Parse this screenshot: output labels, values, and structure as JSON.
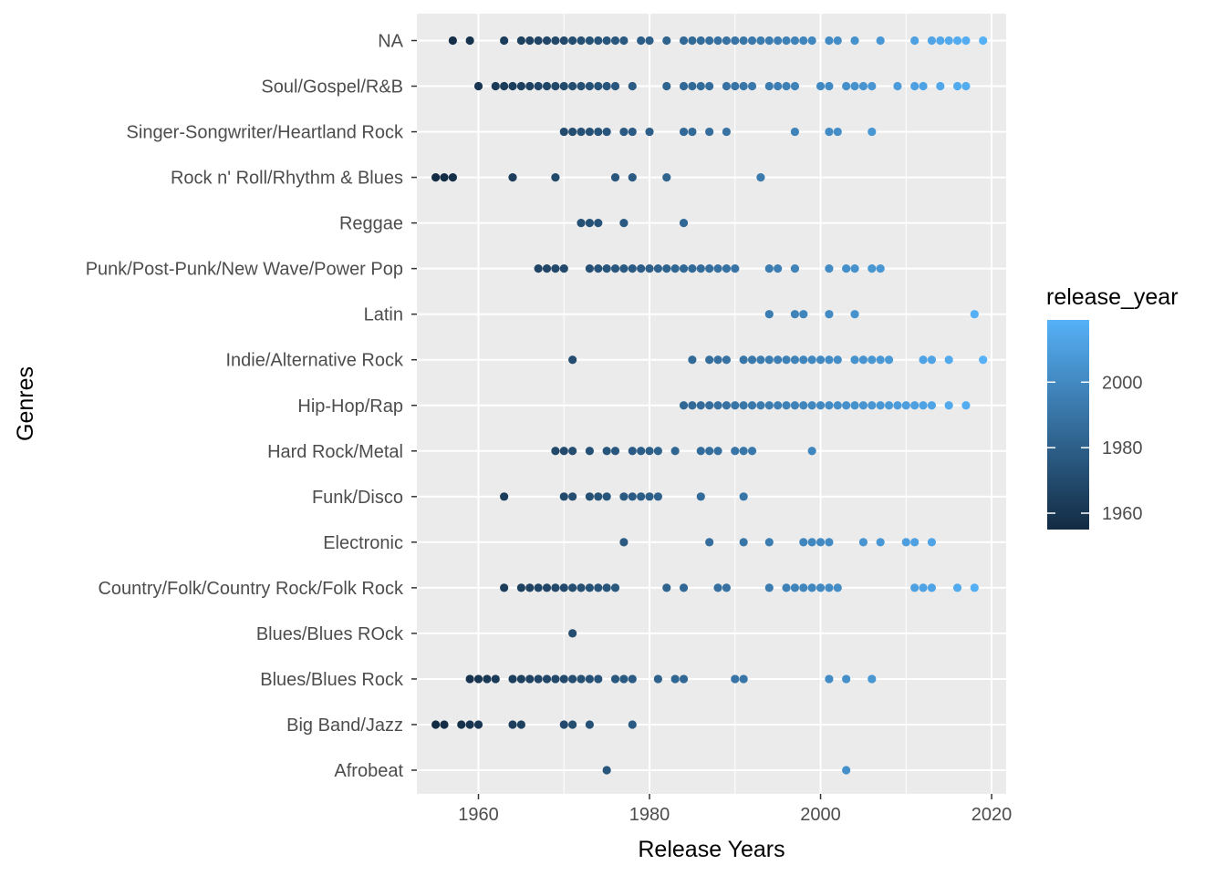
{
  "chart_data": {
    "type": "scatter",
    "title": "",
    "xlabel": "Release Years",
    "ylabel": "Genres",
    "xlim": [
      1952.8,
      2021.7
    ],
    "x_ticks": [
      1960,
      1980,
      2000,
      2020
    ],
    "grid": true,
    "legend_position": "right",
    "colorbar": {
      "title": "release_year",
      "range": [
        1955,
        2019
      ],
      "ticks": [
        1960,
        1980,
        2000
      ],
      "low_color": "#132b43",
      "high_color": "#56b1f7"
    },
    "categories": [
      "Afrobeat",
      "Big Band/Jazz",
      "Blues/Blues Rock",
      "Blues/Blues ROck",
      "Country/Folk/Country Rock/Folk Rock",
      "Electronic",
      "Funk/Disco",
      "Hard Rock/Metal",
      "Hip-Hop/Rap",
      "Indie/Alternative Rock",
      "Latin",
      "Punk/Post-Punk/New Wave/Power Pop",
      "Reggae",
      "Rock n' Roll/Rhythm & Blues",
      "Singer-Songwriter/Heartland Rock",
      "Soul/Gospel/R&B",
      "NA"
    ],
    "points": {
      "NA": [
        1957,
        1959,
        1963,
        1965,
        1966,
        1967,
        1968,
        1969,
        1970,
        1971,
        1972,
        1973,
        1974,
        1975,
        1976,
        1977,
        1979,
        1980,
        1982,
        1984,
        1985,
        1986,
        1987,
        1988,
        1989,
        1990,
        1991,
        1992,
        1993,
        1994,
        1995,
        1996,
        1997,
        1998,
        1999,
        2001,
        2002,
        2004,
        2007,
        2011,
        2013,
        2014,
        2015,
        2016,
        2017,
        2019
      ],
      "Soul/Gospel/R&B": [
        1960,
        1962,
        1963,
        1964,
        1965,
        1966,
        1967,
        1968,
        1969,
        1970,
        1971,
        1972,
        1973,
        1974,
        1975,
        1976,
        1978,
        1982,
        1984,
        1985,
        1986,
        1987,
        1989,
        1990,
        1991,
        1992,
        1994,
        1995,
        1996,
        1997,
        2000,
        2001,
        2003,
        2004,
        2005,
        2006,
        2009,
        2011,
        2012,
        2014,
        2016,
        2017
      ],
      "Singer-Songwriter/Heartland Rock": [
        1970,
        1971,
        1972,
        1973,
        1974,
        1975,
        1977,
        1978,
        1980,
        1984,
        1985,
        1987,
        1989,
        1997,
        2001,
        2002,
        2006
      ],
      "Rock n' Roll/Rhythm & Blues": [
        1955,
        1956,
        1957,
        1964,
        1969,
        1976,
        1978,
        1982,
        1993
      ],
      "Reggae": [
        1972,
        1973,
        1974,
        1977,
        1984
      ],
      "Punk/Post-Punk/New Wave/Power Pop": [
        1967,
        1968,
        1969,
        1970,
        1973,
        1974,
        1975,
        1976,
        1977,
        1978,
        1979,
        1980,
        1981,
        1982,
        1983,
        1984,
        1985,
        1986,
        1987,
        1988,
        1989,
        1990,
        1994,
        1995,
        1997,
        2001,
        2003,
        2004,
        2006,
        2007
      ],
      "Latin": [
        1994,
        1997,
        1998,
        2001,
        2004,
        2018
      ],
      "Indie/Alternative Rock": [
        1971,
        1985,
        1987,
        1988,
        1989,
        1991,
        1992,
        1993,
        1994,
        1995,
        1996,
        1997,
        1998,
        1999,
        2000,
        2001,
        2002,
        2004,
        2005,
        2006,
        2007,
        2008,
        2012,
        2013,
        2015,
        2019
      ],
      "Hip-Hop/Rap": [
        1984,
        1985,
        1986,
        1987,
        1988,
        1989,
        1990,
        1991,
        1992,
        1993,
        1994,
        1995,
        1996,
        1997,
        1998,
        1999,
        2000,
        2001,
        2002,
        2003,
        2004,
        2005,
        2006,
        2007,
        2008,
        2009,
        2010,
        2011,
        2012,
        2013,
        2015,
        2017
      ],
      "Hard Rock/Metal": [
        1969,
        1970,
        1971,
        1973,
        1975,
        1976,
        1978,
        1979,
        1980,
        1981,
        1983,
        1986,
        1987,
        1988,
        1990,
        1991,
        1992,
        1999
      ],
      "Funk/Disco": [
        1963,
        1970,
        1971,
        1973,
        1974,
        1975,
        1977,
        1978,
        1979,
        1980,
        1981,
        1986,
        1991
      ],
      "Electronic": [
        1977,
        1987,
        1991,
        1994,
        1998,
        1999,
        2000,
        2001,
        2005,
        2007,
        2010,
        2011,
        2013
      ],
      "Country/Folk/Country Rock/Folk Rock": [
        1963,
        1965,
        1966,
        1967,
        1968,
        1969,
        1970,
        1971,
        1972,
        1973,
        1974,
        1975,
        1976,
        1982,
        1984,
        1988,
        1989,
        1994,
        1996,
        1997,
        1998,
        1999,
        2000,
        2001,
        2002,
        2011,
        2012,
        2013,
        2016,
        2018
      ],
      "Blues/Blues ROck": [
        1971
      ],
      "Blues/Blues Rock": [
        1959,
        1960,
        1961,
        1962,
        1964,
        1965,
        1966,
        1967,
        1968,
        1969,
        1970,
        1971,
        1972,
        1973,
        1974,
        1976,
        1977,
        1978,
        1981,
        1983,
        1984,
        1990,
        1991,
        2001,
        2003,
        2006
      ],
      "Big Band/Jazz": [
        1955,
        1956,
        1958,
        1959,
        1960,
        1964,
        1965,
        1970,
        1971,
        1973,
        1978
      ],
      "Afrobeat": [
        1975,
        2003
      ]
    }
  }
}
